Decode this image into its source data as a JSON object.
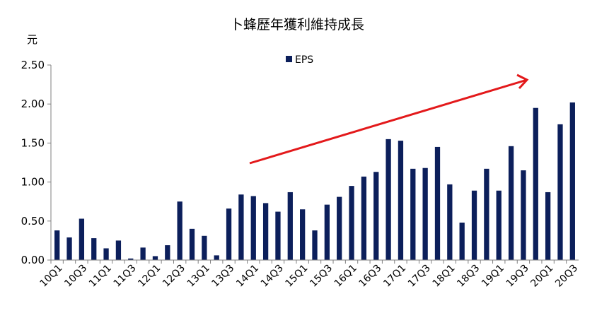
{
  "chart_data": {
    "type": "bar",
    "title": "卜蜂歷年獲利維持成長",
    "ylabel": "元",
    "xlabel": "",
    "ylim": [
      0,
      2.5
    ],
    "yticks": [
      "0.00",
      "0.50",
      "1.00",
      "1.50",
      "2.00",
      "2.50"
    ],
    "grid": false,
    "legend_position": "top-center",
    "bar_color": "#0c1f5b",
    "arrow_color": "#e3191b",
    "categories": [
      "10Q1",
      "10Q2",
      "10Q3",
      "10Q4",
      "11Q1",
      "11Q2",
      "11Q3",
      "11Q4",
      "12Q1",
      "12Q2",
      "12Q3",
      "12Q4",
      "13Q1",
      "13Q2",
      "13Q3",
      "13Q4",
      "14Q1",
      "14Q2",
      "14Q3",
      "14Q4",
      "15Q1",
      "15Q2",
      "15Q3",
      "15Q4",
      "16Q1",
      "16Q2",
      "16Q3",
      "16Q4",
      "17Q1",
      "17Q2",
      "17Q3",
      "17Q4",
      "18Q1",
      "18Q2",
      "18Q3",
      "18Q4",
      "19Q1",
      "19Q2",
      "19Q3",
      "19Q4",
      "20Q1",
      "20Q2",
      "20Q3"
    ],
    "x_tick_labels": [
      "10Q1",
      "10Q3",
      "11Q1",
      "11Q3",
      "12Q1",
      "12Q3",
      "13Q1",
      "13Q3",
      "14Q1",
      "14Q3",
      "15Q1",
      "15Q3",
      "16Q1",
      "16Q3",
      "17Q1",
      "17Q3",
      "18Q1",
      "18Q3",
      "19Q1",
      "19Q3",
      "20Q1",
      "20Q3"
    ],
    "series": [
      {
        "name": "EPS",
        "values": [
          0.38,
          0.29,
          0.53,
          0.28,
          0.15,
          0.25,
          0.02,
          0.16,
          0.05,
          0.19,
          0.75,
          0.4,
          0.31,
          0.06,
          0.66,
          0.84,
          0.82,
          0.73,
          0.62,
          0.87,
          0.65,
          0.38,
          0.71,
          0.81,
          0.95,
          1.07,
          1.13,
          1.55,
          1.53,
          1.17,
          1.18,
          1.45,
          0.97,
          0.48,
          0.89,
          1.17,
          0.89,
          1.46,
          1.15,
          1.95,
          0.87,
          1.74,
          2.02
        ]
      }
    ]
  }
}
